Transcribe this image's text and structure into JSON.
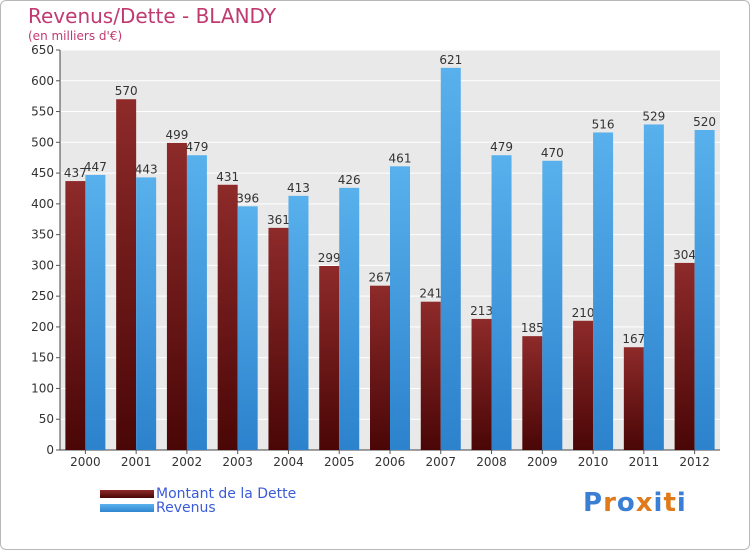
{
  "chart_data": {
    "type": "bar",
    "title": "Revenus/Dette - BLANDY",
    "subtitle": "(en milliers d'€)",
    "categories": [
      "2000",
      "2001",
      "2002",
      "2003",
      "2004",
      "2005",
      "2006",
      "2007",
      "2008",
      "2009",
      "2010",
      "2011",
      "2012"
    ],
    "series": [
      {
        "name": "Montant de la Dette",
        "color": "#8e2a2a",
        "values": [
          437,
          570,
          499,
          431,
          361,
          299,
          267,
          241,
          213,
          185,
          210,
          167,
          304
        ]
      },
      {
        "name": "Revenus",
        "color": "#4ea6e6",
        "values": [
          447,
          443,
          479,
          396,
          413,
          426,
          461,
          621,
          479,
          470,
          516,
          529,
          520
        ]
      }
    ],
    "ylim": [
      0,
      650
    ],
    "ytick_step": 50,
    "grid": true
  },
  "legend": {
    "debt_label": "Montant de la Dette",
    "revenue_label": "Revenus"
  },
  "brand": {
    "letters": [
      "P",
      "r",
      "o",
      "x",
      "i",
      "t",
      "i"
    ],
    "colors": [
      "#3b7fd4",
      "#e07a1a",
      "#3b7fd4",
      "#e07a1a",
      "#3b7fd4",
      "#e07a1a",
      "#3b7fd4"
    ]
  }
}
